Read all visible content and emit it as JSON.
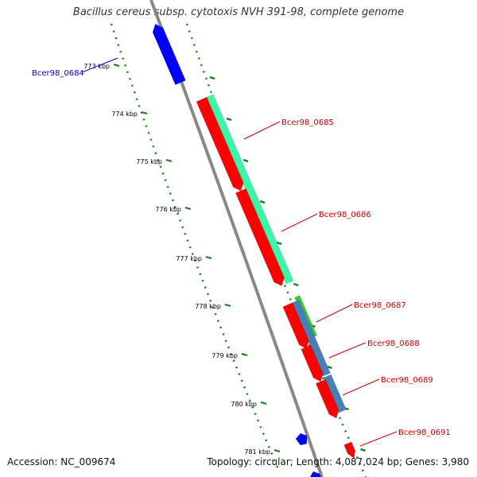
{
  "title": "Bacillus cereus subsp. cytotoxis NVH 391-98, complete genome",
  "footer": {
    "accession": "Accession: NC_009674",
    "summary": "Topology: circular; Length: 4,087,024 bp; Genes: 3,980"
  },
  "colors": {
    "backbone": "#888888",
    "ticks": "#1a7a1a",
    "forward_gene": "#ff0000",
    "reverse_gene": "#0000ff",
    "label_forward": "#cc0000",
    "label_reverse": "#0000cc",
    "feature_cyan": "#3cf5a6",
    "feature_green": "#33cc33",
    "feature_steel": "#4a7fb5"
  },
  "ticks": [
    "773 kbp",
    "774 kbp",
    "775 kbp",
    "776 kbp",
    "777 kbp",
    "778 kbp",
    "779 kbp",
    "780 kbp",
    "781 kbp"
  ],
  "genes": [
    {
      "name": "Bcer98_0684",
      "strand": "reverse"
    },
    {
      "name": "Bcer98_0685",
      "strand": "forward"
    },
    {
      "name": "Bcer98_0686",
      "strand": "forward"
    },
    {
      "name": "Bcer98_0687",
      "strand": "forward"
    },
    {
      "name": "Bcer98_0688",
      "strand": "forward"
    },
    {
      "name": "Bcer98_0689",
      "strand": "forward"
    },
    {
      "name": "Bcer98_0691",
      "strand": "forward"
    }
  ]
}
